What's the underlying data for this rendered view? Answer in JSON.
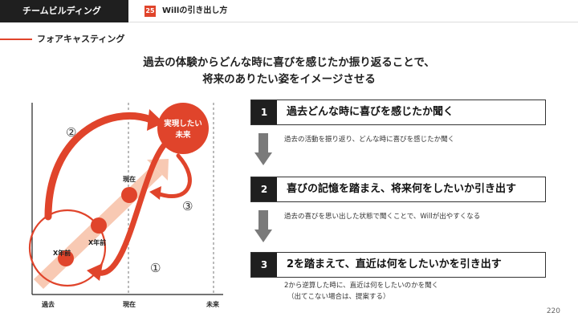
{
  "header": {
    "section_tab": "チームビルディング",
    "slide_number": "25",
    "slide_title": "Willの引き出し方"
  },
  "section": {
    "title": "フォアキャスティング"
  },
  "headline": {
    "line1": "過去の体験からどんな時に喜びを感じたか振り返ることで、",
    "line2": "将来のありたい姿をイメージさせる"
  },
  "diagram": {
    "future_label_line1": "実現したい",
    "future_label_line2": "未来",
    "point_now": "現在",
    "point_x1": "X年前",
    "point_x2": "X年前",
    "axis_past": "過去",
    "axis_now": "現在",
    "axis_future": "未来",
    "marker_1": "①",
    "marker_2": "②",
    "marker_3": "③",
    "accent_color": "#e0442b",
    "bar_color": "#f8c9b3"
  },
  "steps": [
    {
      "number": "1",
      "title": "過去どんな時に喜びを感じたか聞く",
      "desc_line1": "過去の活動を振り返り、どんな時に喜びを感じたか聞く",
      "desc_line2": ""
    },
    {
      "number": "2",
      "title": "喜びの記憶を踏まえ、将来何をしたいか引き出す",
      "desc_line1": "過去の喜びを思い出した状態で聞くことで、Willが出やすくなる",
      "desc_line2": ""
    },
    {
      "number": "3",
      "title": "2を踏まえて、直近は何をしたいかを引き出す",
      "desc_line1": "2から逆算した時に、直近は何をしたいのかを聞く",
      "desc_line2": "（出てこない場合は、提案する）"
    }
  ],
  "footer": {
    "page_number": "220"
  }
}
